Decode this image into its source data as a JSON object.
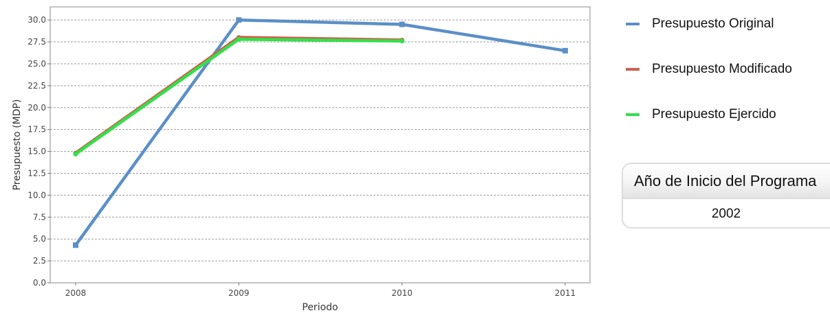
{
  "chart_data": {
    "type": "line",
    "title": "",
    "xlabel": "Periodo",
    "ylabel": "Presupuesto (MDP)",
    "categories": [
      "2008",
      "2009",
      "2010",
      "2011"
    ],
    "ylim": [
      0,
      31.5
    ],
    "yticks": [
      "0.0",
      "2.5",
      "5.0",
      "7.5",
      "10.0",
      "12.5",
      "15.0",
      "17.5",
      "20.0",
      "22.5",
      "25.0",
      "27.5",
      "30.0"
    ],
    "grid": true,
    "legend_position": "right",
    "series": [
      {
        "name": "Presupuesto Original",
        "color": "#5b8fc7",
        "marker": "square",
        "values": [
          4.3,
          30.0,
          29.5,
          26.5
        ]
      },
      {
        "name": "Presupuesto Modificado",
        "color": "#d0604f",
        "marker": "circle",
        "values": [
          14.8,
          28.0,
          27.7,
          null
        ]
      },
      {
        "name": "Presupuesto Ejercido",
        "color": "#33e04a",
        "marker": "circle",
        "values": [
          14.7,
          27.8,
          27.6,
          null
        ]
      }
    ]
  },
  "info_box": {
    "header": "Año de Inicio del Programa",
    "value": "2002"
  }
}
